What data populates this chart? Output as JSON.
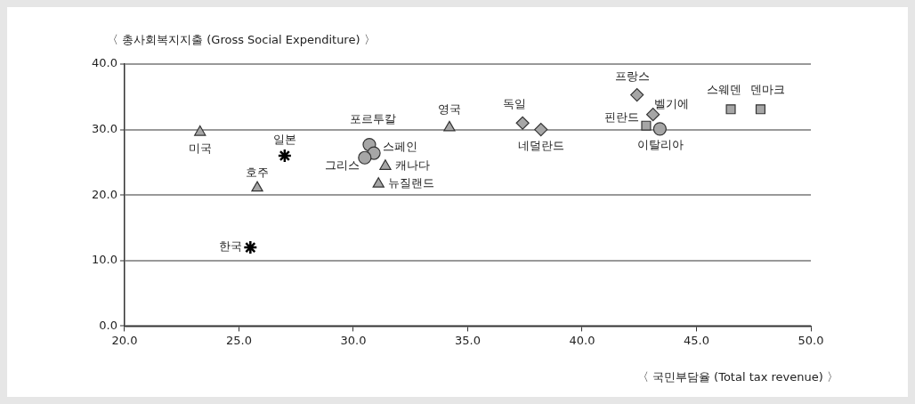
{
  "chart_data": {
    "type": "scatter",
    "xlabel": "〈 국민부담율 (Total tax revenue) 〉",
    "ylabel": "〈 총사회복지지출 (Gross Social Expenditure) 〉",
    "xlim": [
      20,
      50
    ],
    "xticks": [
      {
        "value": 20,
        "label": "20.0"
      },
      {
        "value": 25,
        "label": "25.0"
      },
      {
        "value": 30,
        "label": "30.0"
      },
      {
        "value": 35,
        "label": "35.0"
      },
      {
        "value": 40,
        "label": "40.0"
      },
      {
        "value": 45,
        "label": "45.0"
      },
      {
        "value": 50,
        "label": "50.0"
      }
    ],
    "ylim": [
      0,
      40
    ],
    "yticks": [
      {
        "value": 0,
        "label": "0.0"
      },
      {
        "value": 10,
        "label": "10.0"
      },
      {
        "value": 20,
        "label": "20.0"
      },
      {
        "value": 30,
        "label": "30.0"
      },
      {
        "value": 40,
        "label": "40.0"
      }
    ],
    "grid": "y",
    "legend": false,
    "series": [
      {
        "color": "#a6a6a6",
        "marker": "triangle",
        "x": [
          23.3,
          25.8,
          31.4,
          31.1,
          34.2
        ],
        "values": [
          29.6,
          21.1,
          24.4,
          21.7,
          30.3
        ]
      },
      {
        "color": "#a6a6a6",
        "marker": "circle",
        "x": [
          30.7,
          30.9,
          30.5,
          43.4
        ],
        "values": [
          27.7,
          26.4,
          25.7,
          30.1
        ]
      },
      {
        "color": "#a6a6a6",
        "marker": "diamond",
        "x": [
          37.4,
          38.2,
          42.4,
          43.1
        ],
        "values": [
          31.0,
          30.0,
          35.3,
          32.3
        ]
      },
      {
        "color": "#a6a6a6",
        "marker": "square",
        "x": [
          42.8,
          46.5,
          47.8
        ],
        "values": [
          30.6,
          33.1,
          33.1
        ]
      },
      {
        "color": "#000000",
        "marker": "cross",
        "x": [
          27.0,
          25.5
        ],
        "values": [
          26.0,
          12.0
        ]
      }
    ],
    "annotations": [
      {
        "text": "미국",
        "x": 23.3,
        "y": 29.6
      },
      {
        "text": "호주",
        "x": 25.8,
        "y": 21.1
      },
      {
        "text": "캐나다",
        "x": 31.4,
        "y": 24.4
      },
      {
        "text": "뉴질랜드",
        "x": 31.1,
        "y": 21.7
      },
      {
        "text": "영국",
        "x": 34.2,
        "y": 30.3
      },
      {
        "text": "포르투칼",
        "x": 30.7,
        "y": 27.7
      },
      {
        "text": "스페인",
        "x": 30.9,
        "y": 26.4
      },
      {
        "text": "그리스",
        "x": 30.5,
        "y": 25.7
      },
      {
        "text": "이탈리아",
        "x": 43.4,
        "y": 30.1
      },
      {
        "text": "독일",
        "x": 37.4,
        "y": 31.0
      },
      {
        "text": "네덜란드",
        "x": 38.2,
        "y": 30.0
      },
      {
        "text": "프랑스",
        "x": 42.4,
        "y": 35.3
      },
      {
        "text": "벨기에",
        "x": 43.1,
        "y": 32.3
      },
      {
        "text": "핀란드",
        "x": 42.8,
        "y": 30.6
      },
      {
        "text": "스웨덴",
        "x": 46.5,
        "y": 33.1
      },
      {
        "text": "덴마크",
        "x": 47.8,
        "y": 33.1
      },
      {
        "text": "일본",
        "x": 27.0,
        "y": 26.0
      },
      {
        "text": "한국",
        "x": 25.5,
        "y": 12.0
      }
    ]
  }
}
